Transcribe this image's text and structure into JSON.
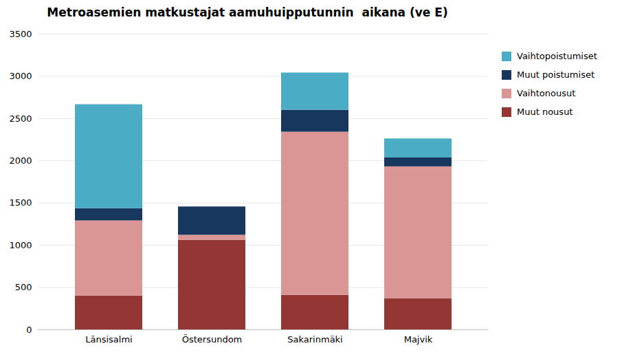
{
  "chart_data": {
    "type": "bar",
    "title": "Metroasemien matkustajat aamuhuipputunnin  aikana (ve E)",
    "categories": [
      "Länsisalmi",
      "Östersundom",
      "Sakarinmäki",
      "Majvik"
    ],
    "series": [
      {
        "name": "Muut nousut",
        "color": "#943634",
        "values": [
          400,
          1060,
          410,
          370
        ]
      },
      {
        "name": "Vaihtonousut",
        "color": "#D99694",
        "values": [
          890,
          60,
          1930,
          1560
        ]
      },
      {
        "name": "Muut poistumiset",
        "color": "#17375E",
        "values": [
          145,
          335,
          260,
          105
        ]
      },
      {
        "name": "Vaihtopoistumiset",
        "color": "#4BACC6",
        "values": [
          1230,
          0,
          440,
          225
        ]
      }
    ],
    "stacked": true,
    "ylim": [
      0,
      3500
    ],
    "yticks": [
      0,
      500,
      1000,
      1500,
      2000,
      2500,
      3000,
      3500
    ],
    "grid": true,
    "legend": "right"
  }
}
